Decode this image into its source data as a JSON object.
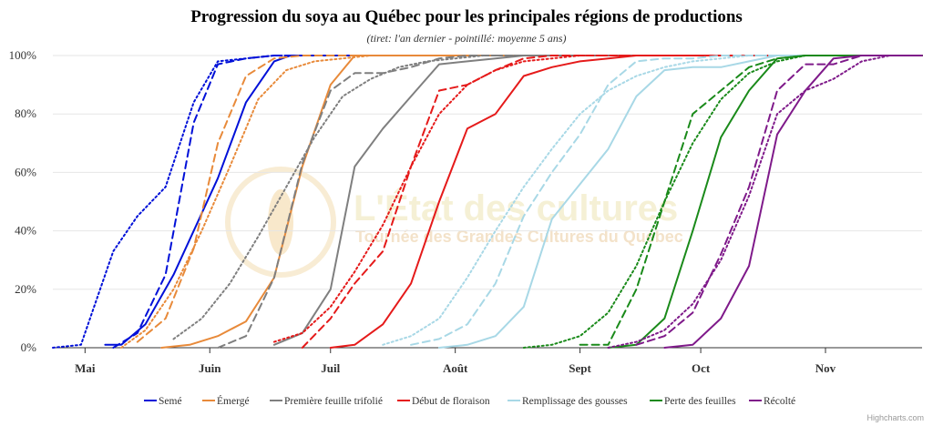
{
  "chart_data": {
    "type": "line",
    "title": "Progression du soya au Québec pour les principales régions de productions",
    "subtitle": "(tiret: l'an dernier - pointillé: moyenne 5 ans)",
    "x_ticks": [
      {
        "label": "Mai",
        "x": "05-01"
      },
      {
        "label": "Juin",
        "x": "06-01"
      },
      {
        "label": "Juil",
        "x": "07-01"
      },
      {
        "label": "Août",
        "x": "08-01"
      },
      {
        "label": "Sept",
        "x": "09-01"
      },
      {
        "label": "Oct",
        "x": "10-01"
      },
      {
        "label": "Nov",
        "x": "11-01"
      }
    ],
    "xlim": [
      "04-23",
      "11-25"
    ],
    "ylim": [
      0,
      100
    ],
    "y_ticks": [
      "0%",
      "20%",
      "40%",
      "60%",
      "80%",
      "100%"
    ],
    "y_tick_values": [
      0,
      20,
      40,
      60,
      80,
      100
    ],
    "grid": true,
    "legend_position": "bottom",
    "credit": "Highcharts.com",
    "watermark": {
      "title": "L'État des cultures",
      "subtitle": "Tournée des Grandes Cultures du Québec"
    },
    "series": [
      {
        "name": "Semé",
        "color": "#0010d8",
        "visible_in_legend": true,
        "style": "solid",
        "points": [
          [
            "05-06",
            1
          ],
          [
            "05-10",
            1
          ],
          [
            "05-16",
            8
          ],
          [
            "05-23",
            25
          ],
          [
            "06-03",
            58
          ],
          [
            "06-10",
            84
          ],
          [
            "06-17",
            98
          ],
          [
            "06-21",
            100
          ],
          [
            "11-25",
            100
          ]
        ]
      },
      {
        "name": "Semé",
        "color": "#0010d8",
        "visible_in_legend": false,
        "style": "dash",
        "points": [
          [
            "05-08",
            0
          ],
          [
            "05-14",
            5
          ],
          [
            "05-21",
            25
          ],
          [
            "05-28",
            77
          ],
          [
            "06-03",
            97
          ],
          [
            "06-10",
            99
          ],
          [
            "06-17",
            100
          ],
          [
            "11-25",
            100
          ]
        ]
      },
      {
        "name": "Semé",
        "color": "#0010d8",
        "visible_in_legend": false,
        "style": "dot",
        "points": [
          [
            "04-23",
            0
          ],
          [
            "04-30",
            1
          ],
          [
            "05-01",
            5
          ],
          [
            "05-08",
            33
          ],
          [
            "05-14",
            45
          ],
          [
            "05-21",
            55
          ],
          [
            "05-28",
            84
          ],
          [
            "06-03",
            98
          ],
          [
            "06-10",
            99
          ],
          [
            "06-17",
            100
          ],
          [
            "11-25",
            100
          ]
        ]
      },
      {
        "name": "Émergé",
        "color": "#e88a3a",
        "visible_in_legend": true,
        "style": "solid",
        "points": [
          [
            "05-20",
            0
          ],
          [
            "05-27",
            1
          ],
          [
            "06-03",
            4
          ],
          [
            "06-10",
            9
          ],
          [
            "06-17",
            24
          ],
          [
            "06-24",
            62
          ],
          [
            "07-01",
            90
          ],
          [
            "07-07",
            100
          ],
          [
            "11-25",
            100
          ]
        ]
      },
      {
        "name": "Émergé",
        "color": "#e88a3a",
        "visible_in_legend": false,
        "style": "dash",
        "points": [
          [
            "05-14",
            2
          ],
          [
            "05-21",
            10
          ],
          [
            "05-28",
            34
          ],
          [
            "06-03",
            70
          ],
          [
            "06-10",
            93
          ],
          [
            "06-17",
            99
          ],
          [
            "06-24",
            100
          ],
          [
            "11-25",
            100
          ]
        ]
      },
      {
        "name": "Émergé",
        "color": "#e88a3a",
        "visible_in_legend": false,
        "style": "dot",
        "points": [
          [
            "05-10",
            0
          ],
          [
            "05-16",
            6
          ],
          [
            "05-23",
            20
          ],
          [
            "05-30",
            40
          ],
          [
            "06-06",
            62
          ],
          [
            "06-13",
            85
          ],
          [
            "06-20",
            95
          ],
          [
            "06-27",
            98
          ],
          [
            "07-04",
            99
          ],
          [
            "07-11",
            100
          ],
          [
            "11-25",
            100
          ]
        ]
      },
      {
        "name": "Première feuille trifolié",
        "color": "#7f7f7f",
        "visible_in_legend": true,
        "style": "solid",
        "points": [
          [
            "06-17",
            1
          ],
          [
            "06-24",
            5
          ],
          [
            "07-01",
            20
          ],
          [
            "07-07",
            62
          ],
          [
            "07-14",
            75
          ],
          [
            "07-21",
            86
          ],
          [
            "07-28",
            97
          ],
          [
            "08-04",
            98
          ],
          [
            "08-11",
            99
          ],
          [
            "08-18",
            100
          ],
          [
            "11-25",
            100
          ]
        ]
      },
      {
        "name": "Première feuille trifolié",
        "color": "#7f7f7f",
        "visible_in_legend": false,
        "style": "dash",
        "points": [
          [
            "06-03",
            0
          ],
          [
            "06-10",
            4
          ],
          [
            "06-17",
            24
          ],
          [
            "06-24",
            63
          ],
          [
            "07-01",
            88
          ],
          [
            "07-07",
            94
          ],
          [
            "07-14",
            94
          ],
          [
            "07-21",
            96
          ],
          [
            "07-28",
            99
          ],
          [
            "08-04",
            100
          ],
          [
            "11-25",
            100
          ]
        ]
      },
      {
        "name": "Première feuille trifolié",
        "color": "#7f7f7f",
        "visible_in_legend": false,
        "style": "dot",
        "points": [
          [
            "05-23",
            3
          ],
          [
            "05-30",
            10
          ],
          [
            "06-06",
            22
          ],
          [
            "06-13",
            38
          ],
          [
            "06-20",
            55
          ],
          [
            "06-27",
            72
          ],
          [
            "07-04",
            86
          ],
          [
            "07-11",
            92
          ],
          [
            "07-18",
            96
          ],
          [
            "07-25",
            98
          ],
          [
            "08-01",
            99
          ],
          [
            "08-08",
            100
          ],
          [
            "11-25",
            100
          ]
        ]
      },
      {
        "name": "Début de floraison",
        "color": "#e51a1a",
        "visible_in_legend": true,
        "style": "solid",
        "points": [
          [
            "07-01",
            0
          ],
          [
            "07-07",
            1
          ],
          [
            "07-14",
            8
          ],
          [
            "07-21",
            22
          ],
          [
            "07-28",
            50
          ],
          [
            "08-04",
            75
          ],
          [
            "08-11",
            80
          ],
          [
            "08-18",
            93
          ],
          [
            "08-25",
            96
          ],
          [
            "09-01",
            98
          ],
          [
            "09-08",
            99
          ],
          [
            "09-15",
            100
          ],
          [
            "11-25",
            100
          ]
        ]
      },
      {
        "name": "Début de floraison",
        "color": "#e51a1a",
        "visible_in_legend": false,
        "style": "dash",
        "points": [
          [
            "06-24",
            0
          ],
          [
            "07-01",
            10
          ],
          [
            "07-07",
            22
          ],
          [
            "07-14",
            33
          ],
          [
            "07-21",
            62
          ],
          [
            "07-28",
            88
          ],
          [
            "08-04",
            90
          ],
          [
            "08-11",
            95
          ],
          [
            "08-18",
            99
          ],
          [
            "08-25",
            100
          ],
          [
            "11-25",
            100
          ]
        ]
      },
      {
        "name": "Début de floraison",
        "color": "#e51a1a",
        "visible_in_legend": false,
        "style": "dot",
        "points": [
          [
            "06-17",
            2
          ],
          [
            "06-24",
            5
          ],
          [
            "07-01",
            14
          ],
          [
            "07-07",
            26
          ],
          [
            "07-14",
            42
          ],
          [
            "07-21",
            62
          ],
          [
            "07-28",
            80
          ],
          [
            "08-04",
            90
          ],
          [
            "08-11",
            95
          ],
          [
            "08-18",
            98
          ],
          [
            "08-25",
            99
          ],
          [
            "09-01",
            100
          ],
          [
            "11-25",
            100
          ]
        ]
      },
      {
        "name": "Remplissage des gousses",
        "color": "#a8d8e6",
        "visible_in_legend": true,
        "style": "solid",
        "points": [
          [
            "07-28",
            0
          ],
          [
            "08-04",
            1
          ],
          [
            "08-11",
            4
          ],
          [
            "08-18",
            14
          ],
          [
            "08-25",
            44
          ],
          [
            "09-01",
            56
          ],
          [
            "09-08",
            68
          ],
          [
            "09-15",
            86
          ],
          [
            "09-22",
            95
          ],
          [
            "09-29",
            96
          ],
          [
            "10-06",
            96
          ],
          [
            "10-13",
            98
          ],
          [
            "10-20",
            100
          ],
          [
            "11-25",
            100
          ]
        ]
      },
      {
        "name": "Remplissage des gousses",
        "color": "#a8d8e6",
        "visible_in_legend": false,
        "style": "dash",
        "points": [
          [
            "07-21",
            1
          ],
          [
            "07-28",
            3
          ],
          [
            "08-04",
            8
          ],
          [
            "08-11",
            22
          ],
          [
            "08-18",
            45
          ],
          [
            "08-25",
            60
          ],
          [
            "09-01",
            73
          ],
          [
            "09-08",
            90
          ],
          [
            "09-15",
            98
          ],
          [
            "09-22",
            99
          ],
          [
            "09-29",
            99
          ],
          [
            "10-06",
            100
          ],
          [
            "11-25",
            100
          ]
        ]
      },
      {
        "name": "Remplissage des gousses",
        "color": "#a8d8e6",
        "visible_in_legend": false,
        "style": "dot",
        "points": [
          [
            "07-14",
            1
          ],
          [
            "07-21",
            4
          ],
          [
            "07-28",
            10
          ],
          [
            "08-04",
            24
          ],
          [
            "08-11",
            40
          ],
          [
            "08-18",
            55
          ],
          [
            "08-25",
            68
          ],
          [
            "09-01",
            80
          ],
          [
            "09-08",
            88
          ],
          [
            "09-15",
            93
          ],
          [
            "09-22",
            96
          ],
          [
            "09-29",
            98
          ],
          [
            "10-06",
            99
          ],
          [
            "10-13",
            100
          ],
          [
            "11-25",
            100
          ]
        ]
      },
      {
        "name": "Perte des feuilles",
        "color": "#1a8a1a",
        "visible_in_legend": true,
        "style": "solid",
        "points": [
          [
            "09-08",
            0
          ],
          [
            "09-15",
            1
          ],
          [
            "09-22",
            10
          ],
          [
            "09-29",
            40
          ],
          [
            "10-06",
            72
          ],
          [
            "10-13",
            88
          ],
          [
            "10-20",
            99
          ],
          [
            "10-27",
            100
          ],
          [
            "11-25",
            100
          ]
        ]
      },
      {
        "name": "Perte des feuilles",
        "color": "#1a8a1a",
        "visible_in_legend": false,
        "style": "dash",
        "points": [
          [
            "09-01",
            1
          ],
          [
            "09-08",
            1
          ],
          [
            "09-15",
            20
          ],
          [
            "09-22",
            50
          ],
          [
            "09-29",
            80
          ],
          [
            "10-06",
            88
          ],
          [
            "10-13",
            96
          ],
          [
            "10-20",
            99
          ],
          [
            "10-27",
            100
          ],
          [
            "11-25",
            100
          ]
        ]
      },
      {
        "name": "Perte des feuilles",
        "color": "#1a8a1a",
        "visible_in_legend": false,
        "style": "dot",
        "points": [
          [
            "08-18",
            0
          ],
          [
            "08-25",
            1
          ],
          [
            "09-01",
            4
          ],
          [
            "09-08",
            12
          ],
          [
            "09-15",
            28
          ],
          [
            "09-22",
            50
          ],
          [
            "09-29",
            70
          ],
          [
            "10-06",
            85
          ],
          [
            "10-13",
            94
          ],
          [
            "10-20",
            98
          ],
          [
            "10-27",
            100
          ],
          [
            "11-25",
            100
          ]
        ]
      },
      {
        "name": "Récolté",
        "color": "#7f1a8a",
        "visible_in_legend": true,
        "style": "solid",
        "points": [
          [
            "09-22",
            0
          ],
          [
            "09-29",
            1
          ],
          [
            "10-06",
            10
          ],
          [
            "10-13",
            28
          ],
          [
            "10-20",
            73
          ],
          [
            "10-27",
            88
          ],
          [
            "11-03",
            99
          ],
          [
            "11-10",
            100
          ],
          [
            "11-25",
            100
          ]
        ]
      },
      {
        "name": "Récolté",
        "color": "#7f1a8a",
        "visible_in_legend": false,
        "style": "dash",
        "points": [
          [
            "09-15",
            1
          ],
          [
            "09-22",
            4
          ],
          [
            "09-29",
            12
          ],
          [
            "10-06",
            32
          ],
          [
            "10-13",
            55
          ],
          [
            "10-20",
            88
          ],
          [
            "10-27",
            97
          ],
          [
            "11-03",
            97
          ],
          [
            "11-10",
            100
          ],
          [
            "11-25",
            100
          ]
        ]
      },
      {
        "name": "Récolté",
        "color": "#7f1a8a",
        "visible_in_legend": false,
        "style": "dot",
        "points": [
          [
            "09-08",
            0
          ],
          [
            "09-15",
            2
          ],
          [
            "09-22",
            6
          ],
          [
            "09-29",
            15
          ],
          [
            "10-06",
            30
          ],
          [
            "10-13",
            52
          ],
          [
            "10-20",
            80
          ],
          [
            "10-27",
            88
          ],
          [
            "11-03",
            92
          ],
          [
            "11-10",
            98
          ],
          [
            "11-17",
            100
          ],
          [
            "11-25",
            100
          ]
        ]
      }
    ]
  }
}
